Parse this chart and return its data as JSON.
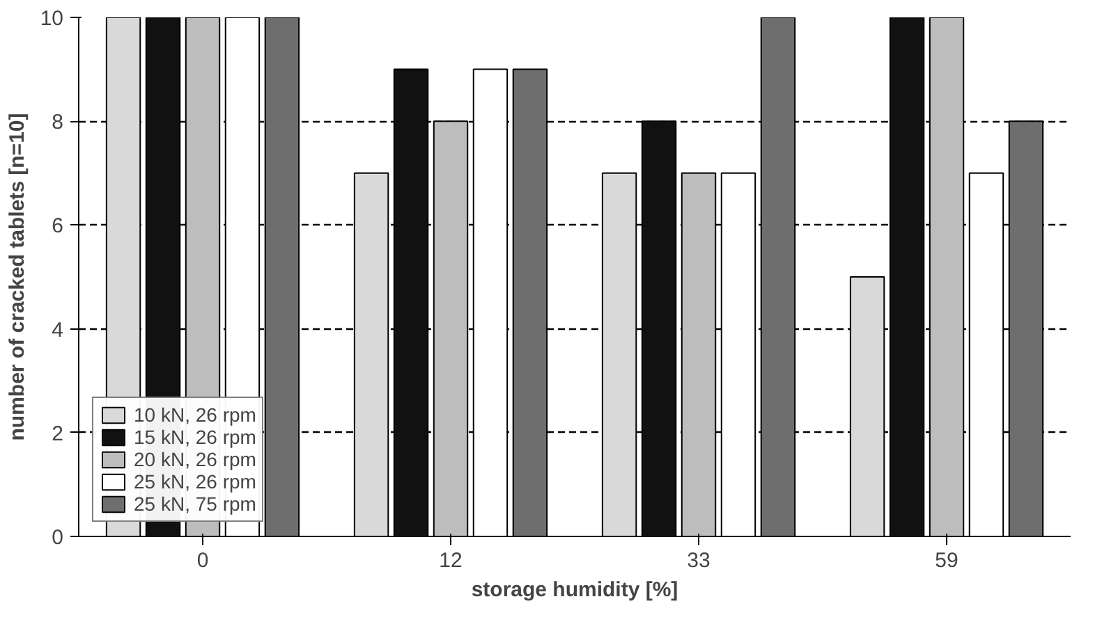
{
  "chart_data": {
    "type": "bar",
    "xlabel": "storage humidity [%]",
    "ylabel": "number of cracked tablets [n=10]",
    "categories": [
      "0",
      "12",
      "33",
      "59"
    ],
    "series": [
      {
        "name": "10 kN, 26 rpm",
        "color": "#d9d9d9",
        "values": [
          10,
          7,
          7,
          5
        ]
      },
      {
        "name": "15 kN, 26 rpm",
        "color": "#111111",
        "values": [
          10,
          9,
          8,
          10
        ]
      },
      {
        "name": "20 kN, 26 rpm",
        "color": "#bdbdbd",
        "values": [
          10,
          8,
          7,
          10
        ]
      },
      {
        "name": "25 kN, 26 rpm",
        "color": "#ffffff",
        "values": [
          10,
          9,
          7,
          7
        ]
      },
      {
        "name": "25 kN, 75 rpm",
        "color": "#6e6e6e",
        "values": [
          10,
          9,
          10,
          8
        ]
      }
    ],
    "ylim": [
      0,
      10
    ],
    "yticks": [
      0,
      2,
      4,
      6,
      8,
      10
    ],
    "grid": "y",
    "legend": "bottom left"
  }
}
